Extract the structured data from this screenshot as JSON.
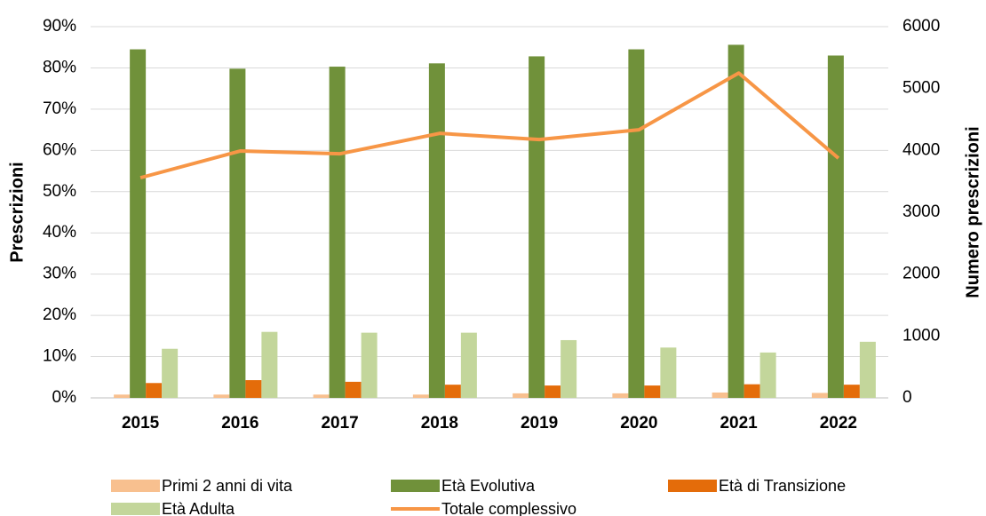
{
  "chart_data": {
    "type": "bar",
    "categories": [
      "2015",
      "2016",
      "2017",
      "2018",
      "2019",
      "2020",
      "2021",
      "2022"
    ],
    "ylabel": "Prescrizioni",
    "y2label": "Numero prescrizioni",
    "ylim": [
      0,
      90
    ],
    "yticks": [
      {
        "value": 0,
        "label": "0%"
      },
      {
        "value": 10,
        "label": "10%"
      },
      {
        "value": 20,
        "label": "20%"
      },
      {
        "value": 30,
        "label": "30%"
      },
      {
        "value": 40,
        "label": "40%"
      },
      {
        "value": 50,
        "label": "50%"
      },
      {
        "value": 60,
        "label": "60%"
      },
      {
        "value": 70,
        "label": "70%"
      },
      {
        "value": 80,
        "label": "80%"
      },
      {
        "value": 90,
        "label": "90%"
      }
    ],
    "y2lim": [
      0,
      6000
    ],
    "y2ticks": [
      0,
      1000,
      2000,
      3000,
      4000,
      5000,
      6000
    ],
    "grid": true,
    "legend": "bottom",
    "series": [
      {
        "name": "Primi 2 anni di vita",
        "color": "#f8c08f",
        "values": [
          0.8,
          0.8,
          0.8,
          0.8,
          1.1,
          1.1,
          1.3,
          1.2
        ]
      },
      {
        "name": "Età Evolutiva",
        "color": "#70913a",
        "values": [
          84.5,
          79.8,
          80.3,
          81.1,
          82.8,
          84.5,
          85.6,
          83.0
        ]
      },
      {
        "name": "Età di Transizione",
        "color": "#e46c0a",
        "values": [
          3.6,
          4.3,
          3.9,
          3.2,
          3.0,
          3.0,
          3.3,
          3.2
        ]
      },
      {
        "name": "Età Adulta",
        "color": "#c3d69b",
        "values": [
          11.9,
          16.0,
          15.8,
          15.8,
          14.0,
          12.2,
          11.0,
          13.6
        ]
      },
      {
        "name": "Totale complessivo",
        "color": "#f79646",
        "type": "line",
        "axis": "y2",
        "values": [
          3558,
          3990,
          3945,
          4275,
          4175,
          4333,
          5250,
          3874
        ]
      }
    ]
  }
}
